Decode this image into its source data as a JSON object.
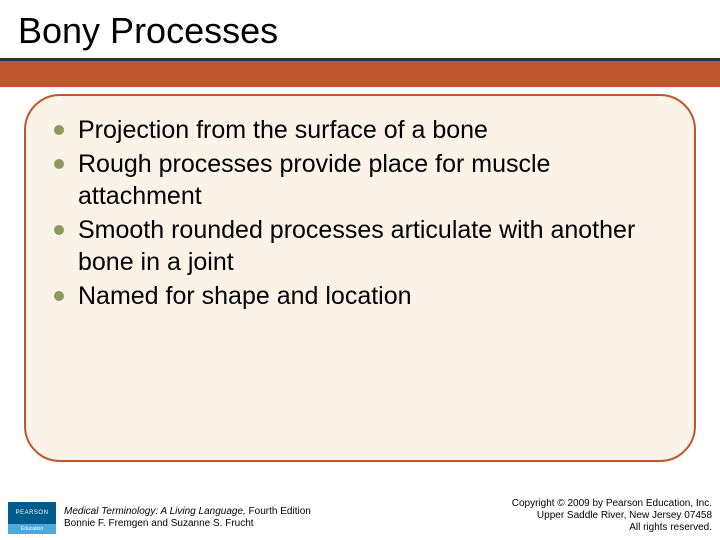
{
  "title": "Bony Processes",
  "bullets": [
    "Projection from the surface of a bone",
    "Rough processes provide place for muscle attachment",
    "Smooth rounded processes articulate with another bone in a joint",
    "Named for shape and location"
  ],
  "colors": {
    "accent_bar": "#c0562e",
    "content_bg": "#fbf3e7",
    "content_border": "#c0562e",
    "bullet_dot": "#8a9a5b",
    "title_underline": "#333333"
  },
  "footer": {
    "logo_top": "PEARSON",
    "logo_bottom": "Education",
    "book_title": "Medical Terminology: A Living Language,",
    "book_edition": " Fourth Edition",
    "authors": "Bonnie F. Fremgen and Suzanne S. Frucht",
    "copyright_line1": "Copyright © 2009 by Pearson Education, Inc.",
    "copyright_line2": "Upper Saddle River, New Jersey 07458",
    "copyright_line3": "All rights reserved."
  }
}
